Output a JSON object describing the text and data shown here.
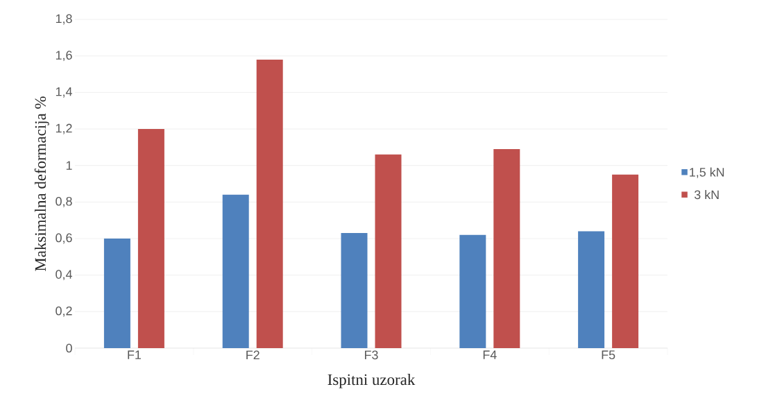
{
  "chart_data": {
    "type": "bar",
    "xlabel": "Ispitni uzorak",
    "ylabel": "Maksimalna deformacija      %",
    "categories": [
      "F1",
      "F2",
      "F3",
      "F4",
      "F5"
    ],
    "series": [
      {
        "name": "1,5 kN",
        "color": "#4f81bd",
        "values": [
          0.6,
          0.84,
          0.63,
          0.62,
          0.64
        ]
      },
      {
        "name": "3 kN",
        "color": "#c0504d",
        "values": [
          1.2,
          1.58,
          1.06,
          1.09,
          0.95
        ]
      }
    ],
    "ylim": [
      0,
      1.8
    ],
    "yticks": [
      0,
      {
        "value": 0.2,
        "label": "0,2"
      },
      {
        "value": 0.4,
        "label": "0,4"
      },
      {
        "value": 0.6,
        "label": "0,6"
      },
      {
        "value": 0.8,
        "label": "0,8"
      },
      1,
      {
        "value": 1.2,
        "label": "1,2"
      },
      {
        "value": 1.4,
        "label": "1,4"
      },
      {
        "value": 1.6,
        "label": "1,6"
      },
      {
        "value": 1.8,
        "label": "1,8"
      }
    ],
    "grid": "y",
    "legend": "right"
  }
}
